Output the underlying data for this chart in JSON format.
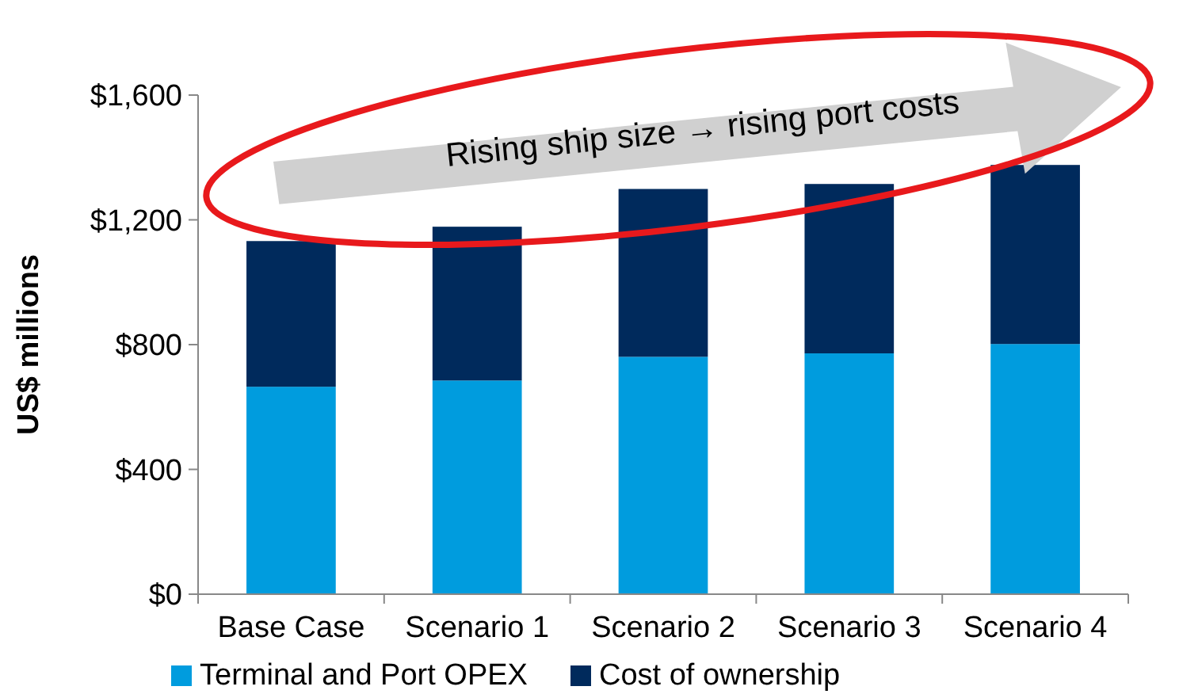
{
  "chart_data": {
    "type": "bar",
    "stacked": true,
    "ylabel": "US$ millions",
    "categories": [
      "Base Case",
      "Scenario 1",
      "Scenario 2",
      "Scenario 3",
      "Scenario 4"
    ],
    "series": [
      {
        "name": "Terminal and Port OPEX",
        "color": "#009cde",
        "values": [
          665,
          685,
          761,
          772,
          802
        ]
      },
      {
        "name": "Cost of ownership",
        "color": "#002a5c",
        "values": [
          467,
          493,
          538,
          543,
          574
        ]
      }
    ],
    "ylim": [
      0,
      1600
    ],
    "yticks": [
      {
        "value": 0,
        "label": "$0"
      },
      {
        "value": 400,
        "label": "$400"
      },
      {
        "value": 800,
        "label": "$800"
      },
      {
        "value": 1200,
        "label": "$1,200"
      },
      {
        "value": 1600,
        "label": "$1,600"
      }
    ],
    "legend": "bottom",
    "annotations": [
      "Rising ship size → rising port costs"
    ]
  }
}
